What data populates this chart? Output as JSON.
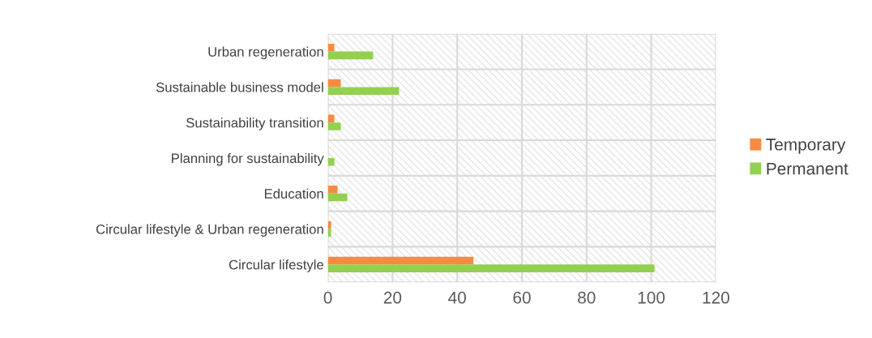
{
  "chart_data": {
    "type": "bar",
    "orientation": "horizontal",
    "categories": [
      "Urban regeneration",
      "Sustainable business model",
      "Sustainability transition",
      "Planning for sustainability",
      "Education",
      "Circular lifestyle & Urban regeneration",
      "Circular lifestyle"
    ],
    "series": [
      {
        "name": "Temporary",
        "color": "#f58b42",
        "values": [
          2,
          4,
          2,
          0,
          3,
          1,
          45
        ]
      },
      {
        "name": "Permanent",
        "color": "#92d050",
        "values": [
          14,
          22,
          4,
          2,
          6,
          1,
          101
        ]
      }
    ],
    "xlim": [
      0,
      120
    ],
    "xticks": [
      0,
      20,
      40,
      60,
      80,
      100,
      120
    ],
    "grid": true,
    "legend": "right"
  }
}
